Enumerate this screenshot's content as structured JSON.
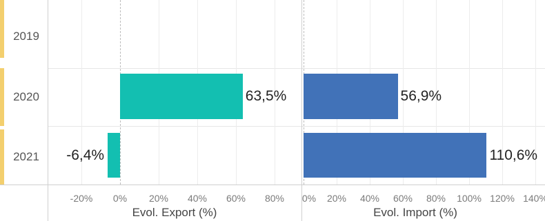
{
  "chart_data": {
    "type": "bar",
    "orientation": "horizontal",
    "categories": [
      "2019",
      "2020",
      "2021"
    ],
    "panels": [
      {
        "id": "export",
        "xlabel": "Evol. Export (%)",
        "xlim": [
          -30,
          90
        ],
        "ticks": [
          -20,
          0,
          20,
          40,
          60,
          80
        ],
        "tick_labels": [
          "-20%",
          "0%",
          "20%",
          "40%",
          "60%",
          "80%"
        ],
        "color": "#13bfb1",
        "values": [
          null,
          63.5,
          -6.4
        ],
        "value_labels": [
          "",
          "63,5%",
          "-6,4%"
        ]
      },
      {
        "id": "import",
        "xlabel": "Evol. Import (%)",
        "xlim": [
          0,
          145
        ],
        "ticks": [
          0,
          20,
          40,
          60,
          80,
          100,
          120,
          140
        ],
        "tick_labels": [
          "0%",
          "20%",
          "40%",
          "60%",
          "80%",
          "100%",
          "120%",
          "140%"
        ],
        "color": "#4172b8",
        "values": [
          null,
          56.9,
          110.6
        ],
        "value_labels": [
          "",
          "56,9%",
          "110,6%"
        ]
      }
    ],
    "grid": true,
    "legend": "none"
  }
}
